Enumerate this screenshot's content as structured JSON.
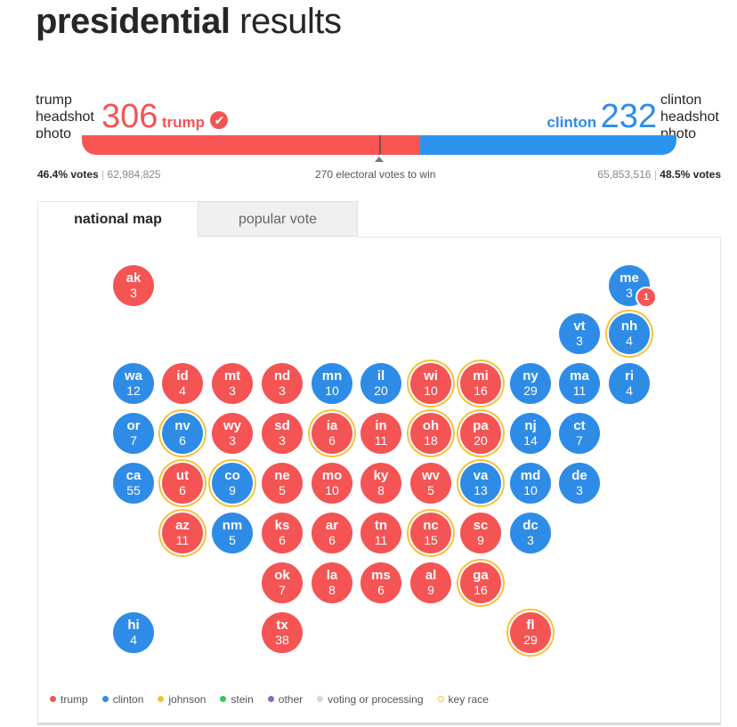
{
  "header": {
    "title_bold": "presidential",
    "title_light": "results"
  },
  "candidates": {
    "left": {
      "headshot_alt": "trump headshot photo",
      "electoral_votes": "306",
      "name": "trump",
      "winner_check": "✔",
      "vote_pct": "46.4% votes",
      "popular_votes": "62,984,825",
      "color": "#f45454"
    },
    "right": {
      "headshot_alt": "clinton headshot photo",
      "electoral_votes": "232",
      "name": "clinton",
      "vote_pct": "48.5% votes",
      "popular_votes": "65,853,516",
      "color": "#2e8ce6"
    }
  },
  "bar": {
    "to_win_label": "270 electoral votes to win",
    "trump_share": 306,
    "clinton_share": 232,
    "total": 538
  },
  "tabs": [
    {
      "label": "national map",
      "active": true
    },
    {
      "label": "popular vote",
      "active": false
    }
  ],
  "states": [
    {
      "abbr": "ak",
      "ev": "3",
      "party": "r",
      "key": false
    },
    {
      "abbr": "me",
      "ev": "3",
      "party": "d",
      "key": false,
      "split_badge": "1"
    },
    {
      "abbr": "vt",
      "ev": "3",
      "party": "d",
      "key": false
    },
    {
      "abbr": "nh",
      "ev": "4",
      "party": "d",
      "key": true
    },
    {
      "abbr": "wa",
      "ev": "12",
      "party": "d",
      "key": false
    },
    {
      "abbr": "id",
      "ev": "4",
      "party": "r",
      "key": false
    },
    {
      "abbr": "mt",
      "ev": "3",
      "party": "r",
      "key": false
    },
    {
      "abbr": "nd",
      "ev": "3",
      "party": "r",
      "key": false
    },
    {
      "abbr": "mn",
      "ev": "10",
      "party": "d",
      "key": false
    },
    {
      "abbr": "il",
      "ev": "20",
      "party": "d",
      "key": false
    },
    {
      "abbr": "wi",
      "ev": "10",
      "party": "r",
      "key": true
    },
    {
      "abbr": "mi",
      "ev": "16",
      "party": "r",
      "key": true
    },
    {
      "abbr": "ny",
      "ev": "29",
      "party": "d",
      "key": false
    },
    {
      "abbr": "ma",
      "ev": "11",
      "party": "d",
      "key": false
    },
    {
      "abbr": "ri",
      "ev": "4",
      "party": "d",
      "key": false
    },
    {
      "abbr": "or",
      "ev": "7",
      "party": "d",
      "key": false
    },
    {
      "abbr": "nv",
      "ev": "6",
      "party": "d",
      "key": true
    },
    {
      "abbr": "wy",
      "ev": "3",
      "party": "r",
      "key": false
    },
    {
      "abbr": "sd",
      "ev": "3",
      "party": "r",
      "key": false
    },
    {
      "abbr": "ia",
      "ev": "6",
      "party": "r",
      "key": true
    },
    {
      "abbr": "in",
      "ev": "11",
      "party": "r",
      "key": false
    },
    {
      "abbr": "oh",
      "ev": "18",
      "party": "r",
      "key": true
    },
    {
      "abbr": "pa",
      "ev": "20",
      "party": "r",
      "key": true
    },
    {
      "abbr": "nj",
      "ev": "14",
      "party": "d",
      "key": false
    },
    {
      "abbr": "ct",
      "ev": "7",
      "party": "d",
      "key": false
    },
    {
      "abbr": "ca",
      "ev": "55",
      "party": "d",
      "key": false
    },
    {
      "abbr": "ut",
      "ev": "6",
      "party": "r",
      "key": true
    },
    {
      "abbr": "co",
      "ev": "9",
      "party": "d",
      "key": true
    },
    {
      "abbr": "ne",
      "ev": "5",
      "party": "r",
      "key": false
    },
    {
      "abbr": "mo",
      "ev": "10",
      "party": "r",
      "key": false
    },
    {
      "abbr": "ky",
      "ev": "8",
      "party": "r",
      "key": false
    },
    {
      "abbr": "wv",
      "ev": "5",
      "party": "r",
      "key": false
    },
    {
      "abbr": "va",
      "ev": "13",
      "party": "d",
      "key": true
    },
    {
      "abbr": "md",
      "ev": "10",
      "party": "d",
      "key": false
    },
    {
      "abbr": "de",
      "ev": "3",
      "party": "d",
      "key": false
    },
    {
      "abbr": "az",
      "ev": "11",
      "party": "r",
      "key": true
    },
    {
      "abbr": "nm",
      "ev": "5",
      "party": "d",
      "key": false
    },
    {
      "abbr": "ks",
      "ev": "6",
      "party": "r",
      "key": false
    },
    {
      "abbr": "ar",
      "ev": "6",
      "party": "r",
      "key": false
    },
    {
      "abbr": "tn",
      "ev": "11",
      "party": "r",
      "key": false
    },
    {
      "abbr": "nc",
      "ev": "15",
      "party": "r",
      "key": true
    },
    {
      "abbr": "sc",
      "ev": "9",
      "party": "r",
      "key": false
    },
    {
      "abbr": "dc",
      "ev": "3",
      "party": "d",
      "key": false
    },
    {
      "abbr": "ok",
      "ev": "7",
      "party": "r",
      "key": false
    },
    {
      "abbr": "la",
      "ev": "8",
      "party": "r",
      "key": false
    },
    {
      "abbr": "ms",
      "ev": "6",
      "party": "r",
      "key": false
    },
    {
      "abbr": "al",
      "ev": "9",
      "party": "r",
      "key": false
    },
    {
      "abbr": "ga",
      "ev": "16",
      "party": "r",
      "key": true
    },
    {
      "abbr": "hi",
      "ev": "4",
      "party": "d",
      "key": false
    },
    {
      "abbr": "tx",
      "ev": "38",
      "party": "r",
      "key": false
    },
    {
      "abbr": "fl",
      "ev": "29",
      "party": "r",
      "key": true
    }
  ],
  "legend": [
    {
      "label": "trump",
      "color": "#f45454",
      "style": "dot"
    },
    {
      "label": "clinton",
      "color": "#2e8ce6",
      "style": "dot"
    },
    {
      "label": "johnson",
      "color": "#f5c33b",
      "style": "dot"
    },
    {
      "label": "stein",
      "color": "#3cc35b",
      "style": "dot"
    },
    {
      "label": "other",
      "color": "#8e6bbf",
      "style": "dot"
    },
    {
      "label": "voting or processing",
      "color": "#d8d8d8",
      "style": "dot"
    },
    {
      "label": "key race",
      "color": "#f5c33b",
      "style": "ring"
    }
  ]
}
